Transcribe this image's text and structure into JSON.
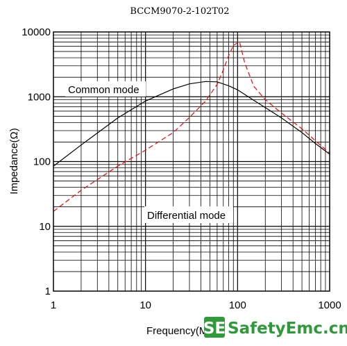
{
  "chart_data": {
    "type": "line",
    "title": "BCCM9070-2-102T02",
    "xlabel": "Frequency(MHz)",
    "ylabel": "Impedance(Ω)",
    "xscale": "log",
    "yscale": "log",
    "xlim": [
      1,
      1000
    ],
    "ylim": [
      1,
      10000
    ],
    "x_ticks": [
      {
        "value": 1,
        "label": "1"
      },
      {
        "value": 10,
        "label": "10"
      },
      {
        "value": 100,
        "label": "100"
      },
      {
        "value": 1000,
        "label": "1000"
      }
    ],
    "y_ticks": [
      {
        "value": 1,
        "label": "1"
      },
      {
        "value": 10,
        "label": "10"
      },
      {
        "value": 100,
        "label": "100"
      },
      {
        "value": 1000,
        "label": "1000"
      },
      {
        "value": 10000,
        "label": "10000"
      }
    ],
    "grid": true,
    "series": [
      {
        "name": "Common mode",
        "style": "solid",
        "color": "#000000",
        "points": [
          [
            1,
            85
          ],
          [
            2,
            180
          ],
          [
            5,
            470
          ],
          [
            10,
            860
          ],
          [
            20,
            1320
          ],
          [
            30,
            1580
          ],
          [
            45,
            1720
          ],
          [
            60,
            1700
          ],
          [
            80,
            1480
          ],
          [
            100,
            1280
          ],
          [
            150,
            880
          ],
          [
            200,
            680
          ],
          [
            300,
            470
          ],
          [
            500,
            280
          ],
          [
            700,
            190
          ],
          [
            1000,
            130
          ]
        ]
      },
      {
        "name": "Differential mode",
        "style": "dashed",
        "color": "#ff0000",
        "points": [
          [
            1,
            17
          ],
          [
            2,
            36
          ],
          [
            5,
            85
          ],
          [
            10,
            150
          ],
          [
            20,
            280
          ],
          [
            30,
            480
          ],
          [
            45,
            860
          ],
          [
            60,
            1550
          ],
          [
            70,
            2600
          ],
          [
            80,
            4300
          ],
          [
            90,
            6200
          ],
          [
            105,
            7100
          ],
          [
            120,
            3300
          ],
          [
            150,
            1450
          ],
          [
            200,
            900
          ],
          [
            300,
            560
          ],
          [
            500,
            320
          ],
          [
            700,
            210
          ],
          [
            1000,
            135
          ]
        ]
      }
    ],
    "annotations": [
      "Common mode",
      "Differential mode"
    ]
  },
  "watermark": {
    "badge": "SE",
    "text": "SafetyEmc.cn",
    "color": "#2e9a3a"
  }
}
